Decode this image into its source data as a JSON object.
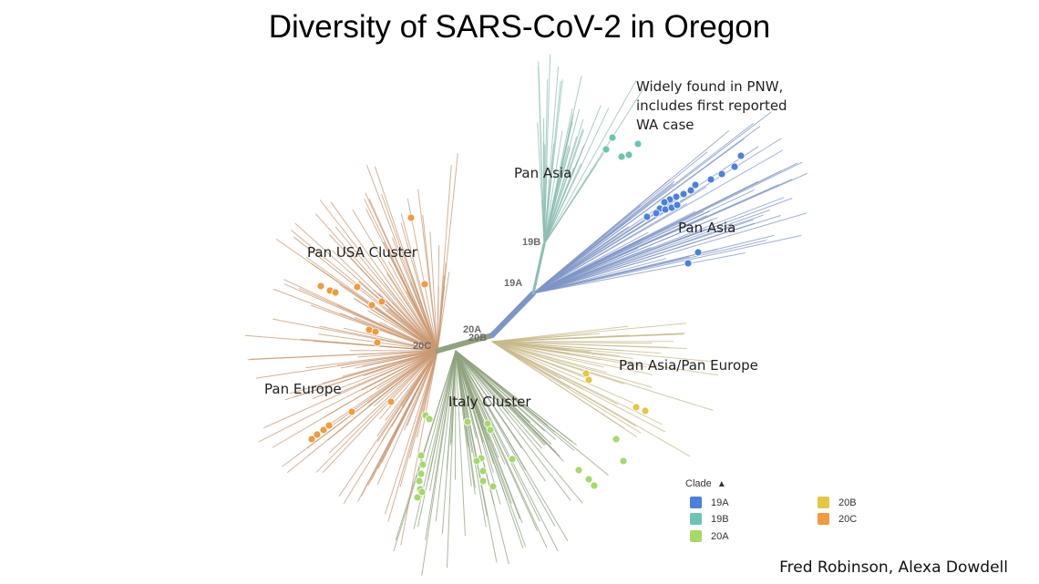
{
  "title": "Diversity of SARS-CoV-2 in Oregon",
  "clade_colors": {
    "19A": "#4a80e0",
    "19B": "#6cc4b0",
    "20A": "#a6d86a",
    "20B": "#e5c642",
    "20C": "#f29a3e"
  },
  "annotations": {
    "pnw_note": [
      "Widely found in PNW,",
      "includes first reported",
      "WA case"
    ],
    "pan_asia_19b": "Pan Asia",
    "pan_asia_19a": "Pan Asia",
    "pan_usa": "Pan USA Cluster",
    "pan_europe": "Pan Europe",
    "italy": "Italy Cluster",
    "pan_asia_europe": "Pan Asia/Pan Europe"
  },
  "node_labels": {
    "n19b": "19B",
    "n19a": "19A",
    "n20a": "20A",
    "n20b": "20B",
    "n20c": "20C"
  },
  "legend": {
    "title": "Clade",
    "items": [
      {
        "label": "19A",
        "color": "#4a80e0"
      },
      {
        "label": "19B",
        "color": "#6cc4b0"
      },
      {
        "label": "20A",
        "color": "#a6d86a"
      },
      {
        "label": "20B",
        "color": "#e5c642"
      },
      {
        "label": "20C",
        "color": "#f29a3e"
      }
    ]
  },
  "credit": "Fred Robinson, Alexa Dowdell"
}
